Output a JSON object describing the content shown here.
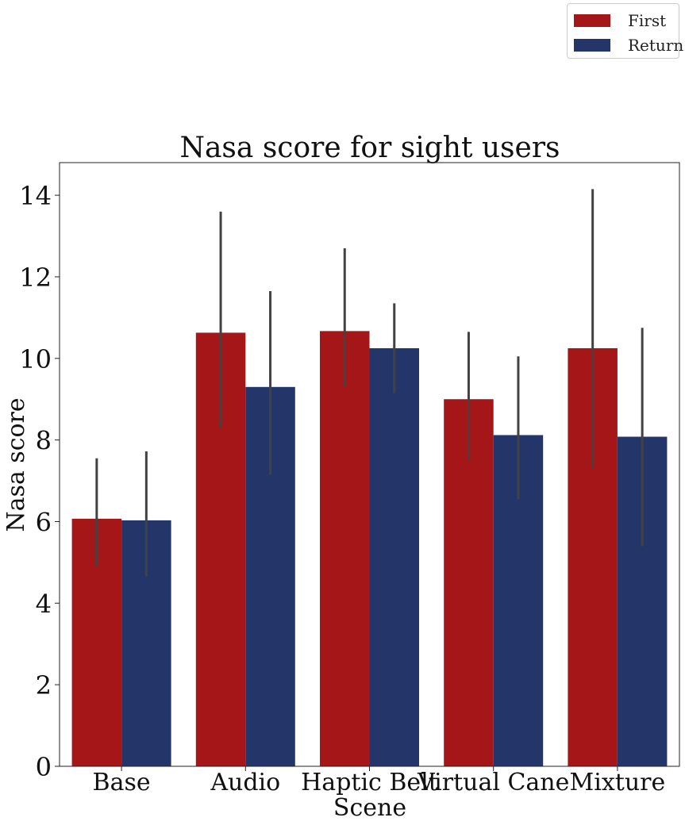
{
  "chart_data": {
    "type": "bar",
    "title": "Nasa score for sight users",
    "xlabel": "Scene",
    "ylabel": "Nasa score",
    "categories": [
      "Base",
      "Audio",
      "Haptic Belt",
      "Virtual Cane",
      "Mixture"
    ],
    "ylim": [
      0,
      14.8
    ],
    "yticks": [
      0,
      2,
      4,
      6,
      8,
      10,
      12,
      14
    ],
    "grid": false,
    "legend_position": "top-right",
    "series": [
      {
        "name": "First",
        "color": "#a51618",
        "values": [
          6.07,
          10.63,
          10.67,
          9.0,
          10.25
        ],
        "error_low": [
          4.9,
          8.3,
          9.3,
          7.5,
          7.3
        ],
        "error_high": [
          7.55,
          13.6,
          12.7,
          10.65,
          14.15
        ]
      },
      {
        "name": "Return",
        "color": "#243669",
        "values": [
          6.03,
          9.3,
          10.25,
          8.12,
          8.08
        ],
        "error_low": [
          4.65,
          7.15,
          9.15,
          6.55,
          5.4
        ],
        "error_high": [
          7.72,
          11.65,
          11.35,
          10.05,
          10.75
        ]
      }
    ],
    "error_bar_color": "#424242"
  }
}
